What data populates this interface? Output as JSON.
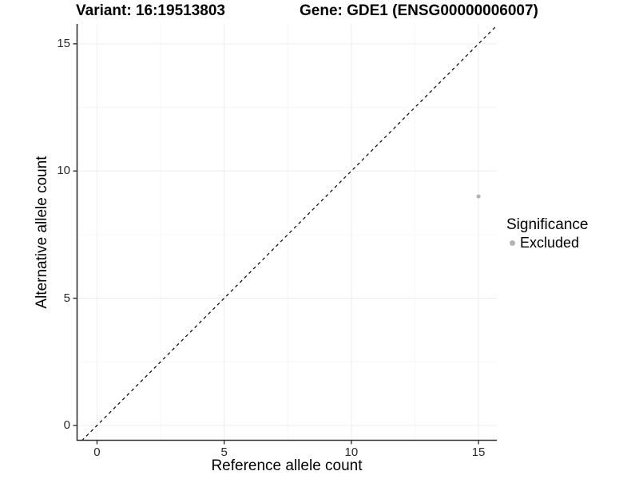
{
  "titles": {
    "variant": "Variant: 16:19513803",
    "gene": "Gene: GDE1 (ENSG00000006007)"
  },
  "chart_data": {
    "type": "scatter",
    "title": "Variant: 16:19513803    Gene: GDE1 (ENSG00000006007)",
    "xlabel": "Reference allele count",
    "ylabel": "Alternative allele count",
    "xticks": [
      0,
      5,
      10,
      15
    ],
    "yticks": [
      0,
      5,
      10,
      15
    ],
    "xlim": [
      -0.8,
      15.72
    ],
    "ylim": [
      -0.6,
      15.78
    ],
    "grid": {
      "major": true,
      "minor": true
    },
    "series": [
      {
        "name": "Excluded",
        "color": "#b3b3b3",
        "points": [
          {
            "x": 15,
            "y": 9
          }
        ]
      }
    ],
    "reference_line": {
      "type": "identity y=x",
      "style": "dashed",
      "color": "#000000"
    },
    "legend": {
      "title": "Significance",
      "position": "right",
      "items": [
        {
          "label": "Excluded",
          "color": "#b3b3b3"
        }
      ]
    }
  },
  "colors": {
    "background": "#ffffff",
    "axis_line": "#333333",
    "tick_label": "#2b2b2b",
    "grid_major": "#ededed",
    "grid_minor": "#f6f6f6",
    "point": "#b3b3b3"
  }
}
